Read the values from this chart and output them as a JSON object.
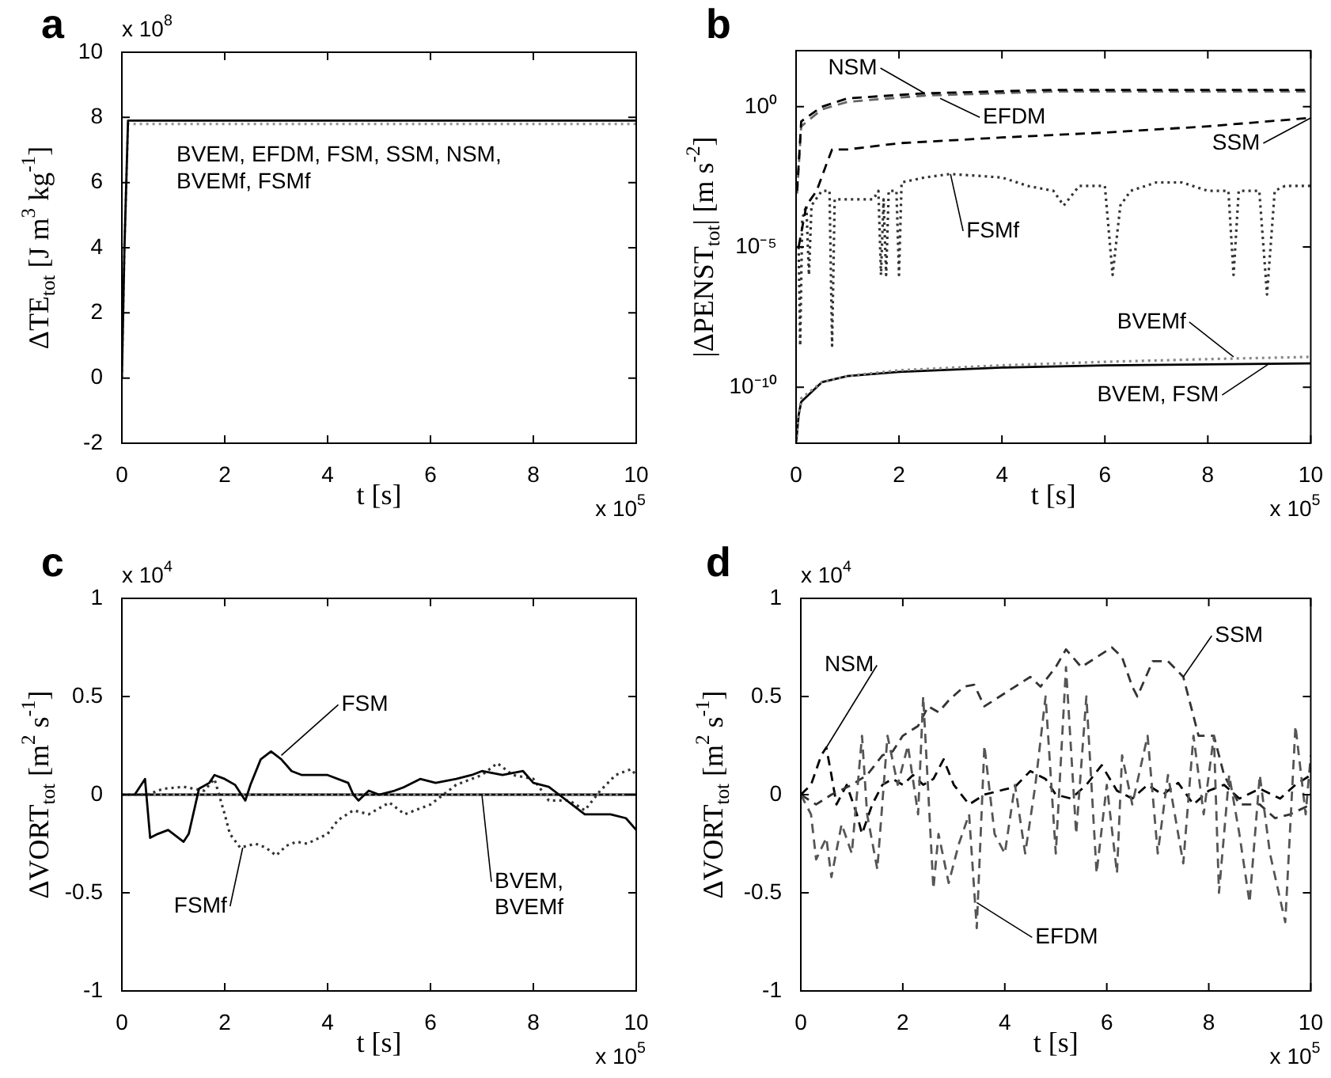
{
  "chart_data": [
    {
      "type": "line",
      "title": "a",
      "xlabel": "t [s]",
      "ylabel": "ΔTE$_{tot}$ [J m$^{3}$ kg$^{-1}$]",
      "xlim": [
        0,
        10
      ],
      "xticks": [
        0,
        2,
        4,
        6,
        8,
        10
      ],
      "ylim": [
        -2,
        10
      ],
      "yticks": [
        -2,
        0,
        2,
        4,
        6,
        8,
        10
      ],
      "series": [
        {
          "color": "#000000",
          "line_style": "solid",
          "x": [
            0,
            0.05,
            0.12,
            10
          ],
          "values": [
            0,
            4,
            7.9,
            7.9
          ]
        },
        {
          "color": "#999999",
          "line_style": "dotted",
          "x": [
            0,
            0.05,
            0.12,
            10
          ],
          "values": [
            0,
            4,
            7.8,
            7.8
          ]
        }
      ],
      "annotations": [
        "x 10$^{8}$",
        "x 10$^{5}$",
        {
          "text": "BVEM, EFDM, FSM, SSM, NSM,\nBVEMf, FSMf",
          "x": 1,
          "y": 7.9
        }
      ]
    },
    {
      "type": "line",
      "title": "b",
      "xlabel": "t [s]",
      "ylabel": "|ΔPENST$_{tot}$| [m s$^{-2}$]",
      "log": "y",
      "xlim": [
        0,
        10
      ],
      "xticks": [
        0,
        2,
        4,
        6,
        8,
        10
      ],
      "ylim": [
        1e-12,
        100
      ],
      "yticks": [
        {
          "value": 1e-10,
          "label": "10⁻¹⁰"
        },
        {
          "value": 1e-05,
          "label": "10⁻⁵"
        },
        {
          "value": 1,
          "label": "10⁰"
        }
      ],
      "series": [
        {
          "color": "#000000",
          "line_style": "dashed",
          "x": [
            0.02,
            0.1,
            0.5,
            1,
            2.5,
            5,
            10
          ],
          "values": [
            0.001,
            0.3,
            1,
            2,
            3,
            4,
            4
          ]
        },
        {
          "color": "#666666",
          "line_style": "dashed",
          "x": [
            0.02,
            0.1,
            0.5,
            1,
            2.5,
            5,
            10
          ],
          "values": [
            0.0008,
            0.2,
            0.8,
            1.5,
            2.5,
            3.5,
            3.5
          ]
        },
        {
          "color": "#000000",
          "line_style": "dashed",
          "x": [
            0.05,
            0.2,
            0.4,
            0.6,
            0.7,
            1,
            2,
            4,
            6,
            8,
            10
          ],
          "values": [
            1e-05,
            0.0003,
            0.001,
            0.01,
            0.03,
            0.03,
            0.05,
            0.08,
            0.12,
            0.2,
            0.4
          ]
        },
        {
          "color": "#333333",
          "line_style": "dotted",
          "x": [
            0.05,
            0.08,
            0.12,
            0.2,
            0.25,
            0.3,
            0.5,
            0.65,
            0.7,
            0.75,
            1,
            1.5,
            1.6,
            1.65,
            1.7,
            1.75,
            1.8,
            1.95,
            2,
            2.05,
            2.5,
            3,
            4,
            4.5,
            5,
            5.2,
            5.5,
            6,
            6.15,
            6.3,
            6.5,
            7,
            7.5,
            8,
            8.4,
            8.5,
            8.6,
            9,
            9.15,
            9.3,
            9.5,
            10
          ],
          "values": [
            1e-05,
            3e-09,
            0.0001,
            0.0003,
            1e-06,
            0.0003,
            0.001,
            0.001,
            3e-09,
            0.0005,
            0.0005,
            0.0005,
            0.001,
            1e-06,
            0.0005,
            1e-06,
            0.001,
            0.001,
            1e-06,
            0.002,
            0.003,
            0.004,
            0.003,
            0.0015,
            0.001,
            0.0003,
            0.0015,
            0.0015,
            1e-06,
            0.0003,
            0.001,
            0.002,
            0.002,
            0.001,
            0.001,
            1e-06,
            0.001,
            0.001,
            2e-07,
            0.001,
            0.0015,
            0.0015
          ]
        },
        {
          "color": "#888888",
          "line_style": "dotted",
          "x": [
            0,
            0.05,
            0.1,
            0.5,
            1,
            2,
            4,
            6,
            8,
            10
          ],
          "values": [
            1e-12,
            1e-11,
            4e-11,
            1.5e-10,
            2.5e-10,
            4e-10,
            6e-10,
            8e-10,
            1e-09,
            1.2e-09
          ]
        },
        {
          "color": "#000000",
          "line_style": "solid",
          "x": [
            0,
            0.05,
            0.1,
            0.5,
            1,
            2,
            4,
            6,
            8,
            10
          ],
          "values": [
            1e-12,
            1e-11,
            3e-11,
            1.5e-10,
            2.5e-10,
            3.5e-10,
            5e-10,
            6e-10,
            6.5e-10,
            7e-10
          ]
        }
      ],
      "annotations": [
        "x 10$^{5}$",
        {
          "text": "NSM",
          "x": 2.5,
          "y": 3
        },
        {
          "text": "EFDM",
          "x": 2.8,
          "y": 2
        },
        {
          "text": "SSM",
          "x": 10,
          "y": 0.4
        },
        {
          "text": "FSMf",
          "x": 3,
          "y": 0.004
        },
        {
          "text": "BVEMf",
          "x": 8.5,
          "y": 1.2e-09
        },
        {
          "text": "BVEM, FSM",
          "x": 9.2,
          "y": 7e-10
        }
      ]
    },
    {
      "type": "line",
      "title": "c",
      "xlabel": "t [s]",
      "ylabel": "ΔVORT$_{tot}$ [m$^{2}$ s$^{-1}$]",
      "xlim": [
        0,
        10
      ],
      "xticks": [
        0,
        2,
        4,
        6,
        8,
        10
      ],
      "ylim": [
        -1,
        1
      ],
      "yticks": [
        -1,
        -0.5,
        0,
        0.5,
        1
      ],
      "series": [
        {
          "color": "#000000",
          "line_style": "solid",
          "x": [
            0.25,
            0.45,
            0.55,
            0.7,
            0.9,
            1.2,
            1.3,
            1.5,
            1.7,
            1.8,
            2,
            2.2,
            2.4,
            2.5,
            2.7,
            2.9,
            3.1,
            3.3,
            3.5,
            4,
            4.4,
            4.5,
            4.6,
            4.8,
            5,
            5.3,
            5.5,
            5.8,
            6.1,
            6.5,
            6.8,
            7,
            7.4,
            7.8,
            8,
            8.3,
            8.5,
            8.8,
            9,
            9.5,
            9.8,
            10
          ],
          "values": [
            0,
            0.08,
            -0.22,
            -0.2,
            -0.18,
            -0.24,
            -0.2,
            0.03,
            0.06,
            0.1,
            0.08,
            0.05,
            -0.03,
            0.05,
            0.18,
            0.22,
            0.18,
            0.12,
            0.1,
            0.1,
            0.06,
            0,
            -0.03,
            0.02,
            0,
            0.02,
            0.04,
            0.08,
            0.06,
            0.08,
            0.1,
            0.12,
            0.1,
            0.12,
            0.06,
            0.04,
            0,
            -0.06,
            -0.1,
            -0.1,
            -0.12,
            -0.18
          ]
        },
        {
          "color": "#333333",
          "line_style": "dotted",
          "x": [
            0,
            0.5,
            0.8,
            1.2,
            1.6,
            1.8,
            2,
            2.1,
            2.3,
            2.6,
            2.8,
            3,
            3.2,
            3.4,
            3.6,
            4,
            4.2,
            4.5,
            4.8,
            5.2,
            5.5,
            6,
            6.5,
            7,
            7.3,
            7.6,
            8,
            8.3,
            8.7,
            9,
            9.3,
            9.6,
            9.9,
            10
          ],
          "values": [
            0,
            0,
            0.03,
            0.04,
            0.02,
            0.08,
            -0.1,
            -0.2,
            -0.27,
            -0.25,
            -0.27,
            -0.31,
            -0.26,
            -0.24,
            -0.25,
            -0.2,
            -0.13,
            -0.08,
            -0.1,
            -0.04,
            -0.1,
            -0.05,
            0.05,
            0.1,
            0.16,
            0.1,
            0.08,
            -0.03,
            -0.03,
            -0.08,
            0.02,
            0.1,
            0.13,
            0.1
          ]
        },
        {
          "color": "#888888",
          "line_style": "dotted",
          "x": [
            0,
            10
          ],
          "values": [
            0,
            0
          ]
        },
        {
          "color": "#000000",
          "line_style": "solid",
          "x": [
            0,
            10
          ],
          "values": [
            0,
            0
          ]
        }
      ],
      "annotations": [
        "x 10$^{4}$",
        "x 10$^{5}$",
        {
          "text": "FSM",
          "x": 3.1,
          "y": 0.2
        },
        {
          "text": "FSMf",
          "x": 2.35,
          "y": -0.27
        },
        {
          "text": "BVEM,\nBVEMf",
          "x": 7,
          "y": 0
        }
      ]
    },
    {
      "type": "line",
      "title": "d",
      "xlabel": "t [s]",
      "ylabel": "ΔVORT$_{tot}$ [m$^{2}$ s$^{-1}$]",
      "xlim": [
        0,
        10
      ],
      "xticks": [
        0,
        2,
        4,
        6,
        8,
        10
      ],
      "ylim": [
        -1,
        1
      ],
      "yticks": [
        -1,
        -0.5,
        0,
        0.5,
        1
      ],
      "series": [
        {
          "color": "#555555",
          "line_style": "dashed",
          "x": [
            0,
            0.2,
            0.3,
            0.5,
            0.6,
            0.8,
            1,
            1.2,
            1.3,
            1.5,
            1.7,
            1.9,
            2.1,
            2.3,
            2.4,
            2.6,
            2.7,
            2.9,
            3.1,
            3.3,
            3.45,
            3.6,
            3.8,
            4,
            4.2,
            4.4,
            4.6,
            4.8,
            5,
            5.2,
            5.4,
            5.6,
            5.8,
            6,
            6.2,
            6.3,
            6.5,
            6.8,
            7,
            7.2,
            7.5,
            7.7,
            7.9,
            8.1,
            8.2,
            8.4,
            8.6,
            8.8,
            9,
            9.2,
            9.5,
            9.7,
            9.9,
            10
          ],
          "values": [
            0,
            -0.1,
            -0.33,
            -0.22,
            -0.42,
            -0.15,
            -0.3,
            0.3,
            -0.1,
            -0.38,
            0.3,
            0.05,
            0.25,
            -0.1,
            0.5,
            -0.48,
            -0.2,
            -0.45,
            -0.25,
            -0.1,
            -0.68,
            0.25,
            -0.2,
            -0.3,
            0.05,
            -0.3,
            0.05,
            0.5,
            -0.3,
            0.65,
            -0.2,
            0.5,
            -0.4,
            0.05,
            -0.4,
            0.2,
            -0.05,
            0.3,
            -0.3,
            0.1,
            -0.35,
            0.3,
            -0.1,
            0.3,
            -0.5,
            0.1,
            -0.2,
            -0.55,
            0.1,
            -0.3,
            -0.65,
            0.35,
            -0.1,
            0.2
          ]
        },
        {
          "color": "#333333",
          "line_style": "dashed",
          "x": [
            0,
            0.3,
            0.6,
            1,
            1.3,
            1.6,
            1.8,
            2,
            2.3,
            2.5,
            2.7,
            2.9,
            3.2,
            3.4,
            3.6,
            3.9,
            4.2,
            4.5,
            4.7,
            5,
            5.2,
            5.5,
            5.8,
            6.1,
            6.3,
            6.5,
            6.6,
            6.9,
            7.2,
            7.5,
            7.7,
            7.8,
            8.1,
            8.3,
            8.6,
            9,
            9.3,
            9.6,
            10
          ],
          "values": [
            0,
            -0.05,
            0,
            0.05,
            0.1,
            0.2,
            0.22,
            0.3,
            0.35,
            0.45,
            0.42,
            0.48,
            0.55,
            0.56,
            0.45,
            0.5,
            0.55,
            0.6,
            0.55,
            0.65,
            0.74,
            0.65,
            0.7,
            0.75,
            0.7,
            0.55,
            0.5,
            0.68,
            0.68,
            0.6,
            0.4,
            0.3,
            0.3,
            0.1,
            -0.05,
            -0.05,
            -0.12,
            -0.1,
            -0.05
          ]
        },
        {
          "color": "#000000",
          "line_style": "dashed",
          "x": [
            0,
            0.2,
            0.4,
            0.5,
            0.6,
            0.7,
            0.9,
            1.1,
            1.2,
            1.4,
            1.6,
            1.8,
            2,
            2.2,
            2.4,
            2.6,
            2.8,
            3,
            3.3,
            3.6,
            3.9,
            4.2,
            4.5,
            4.8,
            5,
            5.3,
            5.6,
            5.9,
            6.2,
            6.5,
            6.8,
            7.1,
            7.4,
            7.7,
            8,
            8.3,
            8.6,
            9,
            9.4,
            9.7,
            10
          ],
          "values": [
            0,
            0.05,
            0.2,
            0.24,
            0.1,
            -0.05,
            0.05,
            -0.1,
            -0.2,
            -0.05,
            0.05,
            0.08,
            0.05,
            0.1,
            0.05,
            0.08,
            0.18,
            0.05,
            -0.05,
            0,
            0.02,
            0.04,
            0.12,
            0.08,
            0,
            -0.02,
            0.05,
            0.15,
            0.02,
            -0.02,
            0.05,
            0,
            0.06,
            -0.05,
            0.02,
            0.05,
            -0.02,
            0.03,
            -0.02,
            0.05,
            0.1
          ]
        }
      ],
      "annotations": [
        "x 10$^{4}$",
        "x 10$^{5}$",
        {
          "text": "NSM",
          "x": 0.5,
          "y": 0.24
        },
        {
          "text": "EFDM",
          "x": 3.45,
          "y": -0.55
        },
        {
          "text": "SSM",
          "x": 7.5,
          "y": 0.6
        }
      ]
    }
  ]
}
